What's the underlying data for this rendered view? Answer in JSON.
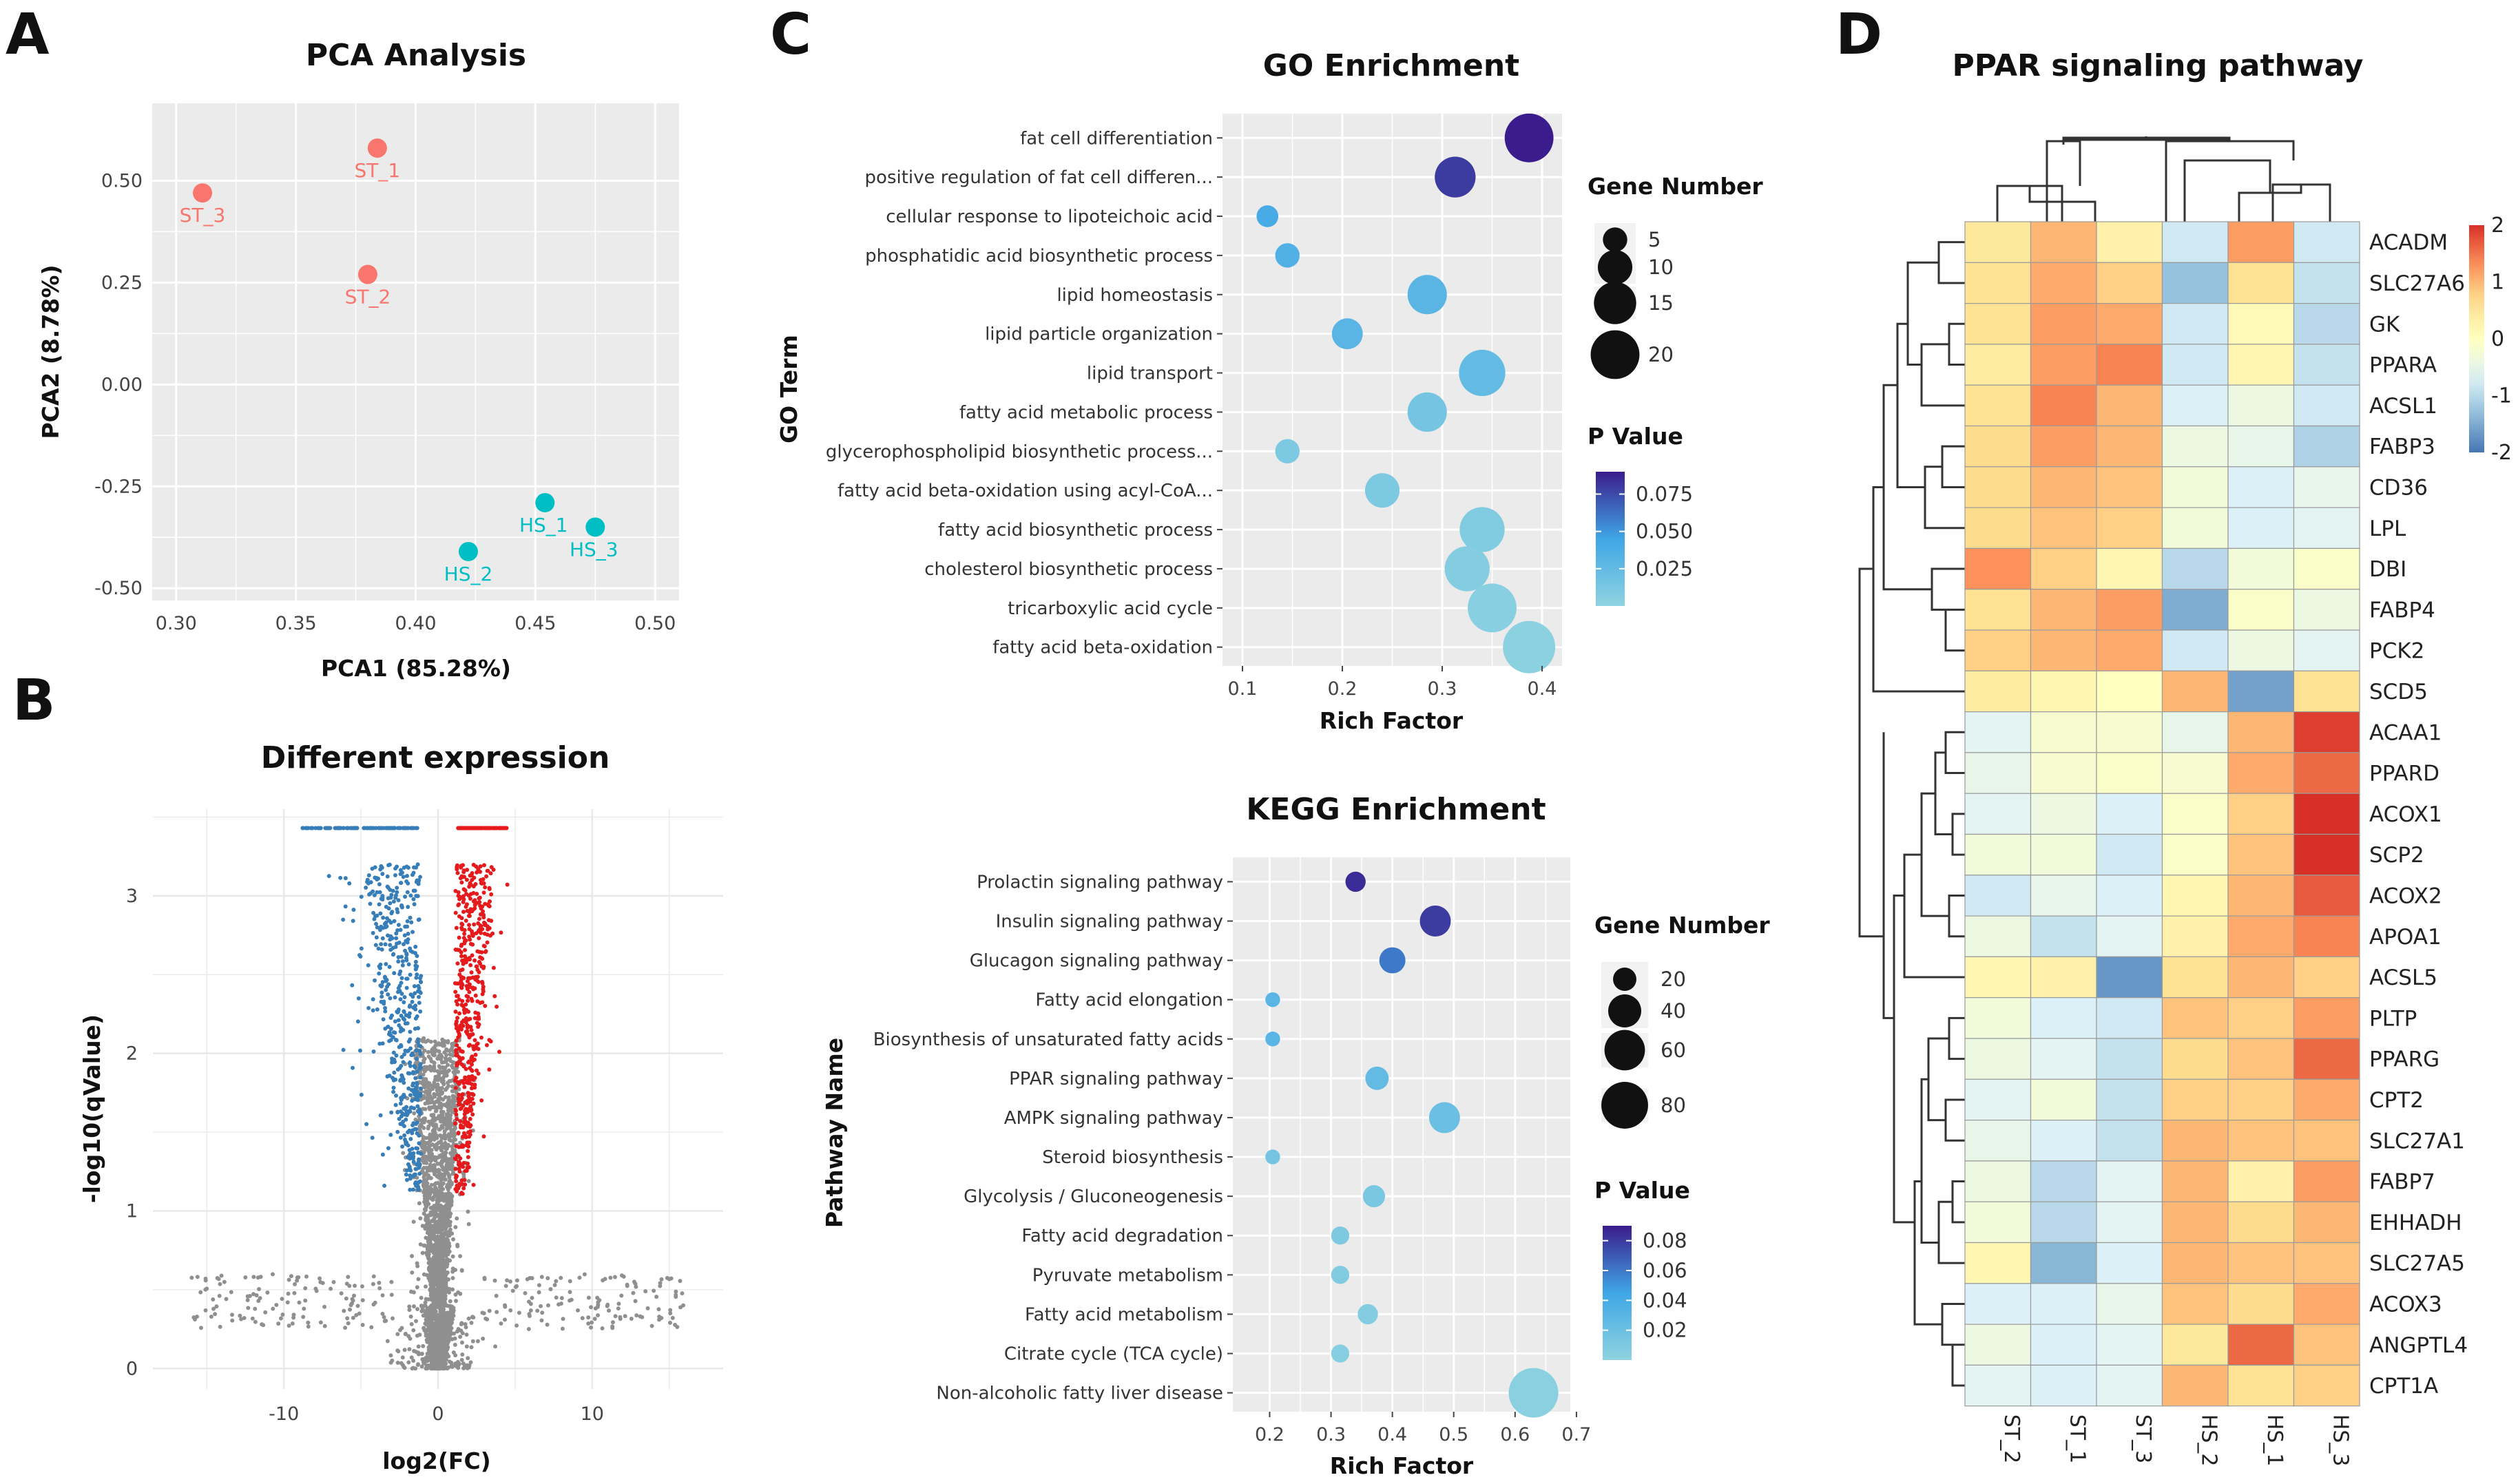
{
  "panels": {
    "A": {
      "letter": "A",
      "title": "PCA Analysis"
    },
    "B": {
      "letter": "B",
      "title": "Different expression"
    },
    "C": {
      "letter": "C"
    },
    "D": {
      "letter": "D",
      "title": "PPAR signaling pathway"
    }
  },
  "colors": {
    "st": "#f8766d",
    "hs": "#00bfc4",
    "panel_bg": "#ebebeb",
    "up": "#e41a1c",
    "down": "#377eb8",
    "ns": "#8f8f8f",
    "p_low": "#8fd3e0",
    "p_mid": "#3fa6e6",
    "p_high": "#3b1c8c",
    "heat_low": "#4575b4",
    "heat_mid": "#ffffbf",
    "heat_high": "#d73027"
  },
  "chart_data": [
    {
      "id": "pca",
      "type": "scatter",
      "title": "PCA Analysis",
      "xlabel": "PCA1 (85.28%)",
      "ylabel": "PCA2 (8.78%)",
      "xlim": [
        0.29,
        0.51
      ],
      "ylim": [
        -0.53,
        0.69
      ],
      "xticks": [
        0.3,
        0.35,
        0.4,
        0.45,
        0.5
      ],
      "xtick_labels": [
        "0.30",
        "0.35",
        "0.40",
        "0.45",
        "0.50"
      ],
      "yticks": [
        0.5,
        0.25,
        0.0,
        -0.25,
        -0.5
      ],
      "ytick_labels": [
        "0.50",
        "0.25",
        "0.00",
        "-0.25",
        "-0.50"
      ],
      "points": [
        {
          "label": "ST_1",
          "group": "ST",
          "x": 0.384,
          "y": 0.58
        },
        {
          "label": "ST_2",
          "group": "ST",
          "x": 0.38,
          "y": 0.27
        },
        {
          "label": "ST_3",
          "group": "ST",
          "x": 0.311,
          "y": 0.47
        },
        {
          "label": "HS_1",
          "group": "HS",
          "x": 0.454,
          "y": -0.29
        },
        {
          "label": "HS_2",
          "group": "HS",
          "x": 0.422,
          "y": -0.41
        },
        {
          "label": "HS_3",
          "group": "HS",
          "x": 0.475,
          "y": -0.35
        }
      ]
    },
    {
      "id": "volcano",
      "type": "scatter",
      "title": "Different expression",
      "xlabel": "log2(FC)",
      "ylabel": "-log10(qValue)",
      "xlim": [
        -18.5,
        18.5
      ],
      "ylim": [
        -0.13,
        3.55
      ],
      "xticks": [
        -10,
        0,
        10
      ],
      "xtick_labels": [
        "-10",
        "0",
        "10"
      ],
      "yticks": [
        0,
        1,
        2,
        3
      ],
      "ytick_labels": [
        "0",
        "1",
        "2",
        "3"
      ],
      "groups": [
        "up",
        "down",
        "not significant"
      ]
    },
    {
      "id": "go",
      "type": "scatter",
      "title": "GO Enrichment",
      "xlabel": "Rich Factor",
      "ylabel": "GO Term",
      "xlim": [
        0.08,
        0.42
      ],
      "xticks": [
        0.1,
        0.2,
        0.3,
        0.4
      ],
      "xtick_labels": [
        "0.1",
        "0.2",
        "0.3",
        "0.4"
      ],
      "categories": [
        "fat cell differentiation",
        "positive regulation of fat cell differen...",
        "cellular response to lipoteichoic acid",
        "phosphatidic acid biosynthetic process",
        "lipid homeostasis",
        "lipid particle organization",
        "lipid transport",
        "fatty acid metabolic process",
        "glycerophospholipid biosynthetic process...",
        "fatty acid beta-oxidation using acyl-CoA...",
        "fatty acid biosynthetic process",
        "cholesterol biosynthetic process",
        "tricarboxylic acid cycle",
        "fatty acid beta-oxidation"
      ],
      "rich_factor": [
        0.387,
        0.313,
        0.125,
        0.145,
        0.285,
        0.205,
        0.34,
        0.285,
        0.145,
        0.24,
        0.34,
        0.325,
        0.35,
        0.387
      ],
      "gene_number": [
        20,
        14,
        4,
        5,
        13,
        8,
        18,
        13,
        5,
        10,
        17,
        17,
        20,
        23
      ],
      "p_value": [
        0.09,
        0.08,
        0.04,
        0.035,
        0.03,
        0.03,
        0.025,
        0.015,
        0.01,
        0.01,
        0.008,
        0.006,
        0.004,
        0.002
      ],
      "size_legend": {
        "title": "Gene Number",
        "values": [
          5,
          10,
          15,
          20
        ],
        "labels": [
          "5",
          "10",
          "15",
          "20"
        ]
      },
      "color_legend": {
        "title": "P Value",
        "range": [
          0,
          0.09
        ],
        "ticks": [
          0.075,
          0.05,
          0.025
        ],
        "labels": [
          "0.075",
          "0.050",
          "0.025"
        ]
      }
    },
    {
      "id": "kegg",
      "type": "scatter",
      "title": "KEGG Enrichment",
      "xlabel": "Rich Factor",
      "ylabel": "Pathway Name",
      "xlim": [
        0.14,
        0.69
      ],
      "xticks": [
        0.2,
        0.3,
        0.4,
        0.5,
        0.6,
        0.7
      ],
      "xtick_labels": [
        "0.2",
        "0.3",
        "0.4",
        "0.5",
        "0.6",
        "0.7"
      ],
      "categories": [
        "Prolactin signaling pathway",
        "Insulin signaling pathway",
        "Glucagon signaling pathway",
        "Fatty acid elongation",
        "Biosynthesis of unsaturated fatty acids",
        "PPAR signaling pathway",
        "AMPK signaling pathway",
        "Steroid biosynthesis",
        "Glycolysis / Gluconeogenesis",
        "Fatty acid degradation",
        "Pyruvate metabolism",
        "Fatty acid metabolism",
        "Citrate cycle (TCA cycle)",
        "Non-alcoholic fatty liver disease"
      ],
      "rich_factor": [
        0.34,
        0.47,
        0.4,
        0.205,
        0.205,
        0.375,
        0.485,
        0.205,
        0.37,
        0.315,
        0.315,
        0.36,
        0.315,
        0.63
      ],
      "gene_number": [
        15,
        35,
        25,
        8,
        8,
        20,
        35,
        8,
        18,
        12,
        12,
        15,
        12,
        90
      ],
      "p_value": [
        0.085,
        0.08,
        0.06,
        0.03,
        0.03,
        0.025,
        0.02,
        0.015,
        0.012,
        0.01,
        0.008,
        0.006,
        0.005,
        0.003
      ],
      "size_legend": {
        "title": "Gene Number",
        "values": [
          20,
          40,
          60,
          80
        ],
        "labels": [
          "20",
          "40",
          "60",
          "80"
        ]
      },
      "color_legend": {
        "title": "P Value",
        "range": [
          0,
          0.09
        ],
        "ticks": [
          0.08,
          0.06,
          0.04,
          0.02
        ],
        "labels": [
          "0.08",
          "0.06",
          "0.04",
          "0.02"
        ]
      }
    },
    {
      "id": "heatmap",
      "type": "heatmap",
      "title": "PPAR signaling pathway",
      "columns": [
        "ST_2",
        "ST_1",
        "ST_3",
        "HS_2",
        "HS_1",
        "HS_3"
      ],
      "rows": [
        "ACADM",
        "SLC27A6",
        "GK",
        "PPARA",
        "ACSL1",
        "FABP3",
        "CD36",
        "LPL",
        "DBI",
        "FABP4",
        "PCK2",
        "SCD5",
        "ACAA1",
        "PPARD",
        "ACOX1",
        "SCP2",
        "ACOX2",
        "APOA1",
        "ACSL5",
        "PLTP",
        "PPARG",
        "CPT2",
        "SLC27A1",
        "FABP7",
        "EHHADH",
        "SLC27A5",
        "ACOX3",
        "ANGPTL4",
        "CPT1A"
      ],
      "values": [
        [
          0.5,
          1.0,
          0.3,
          -0.8,
          1.2,
          -0.8
        ],
        [
          0.6,
          1.1,
          0.8,
          -1.3,
          0.6,
          -0.9
        ],
        [
          0.6,
          1.2,
          1.1,
          -0.8,
          0.1,
          -1.0
        ],
        [
          0.4,
          1.2,
          1.4,
          -0.8,
          0.2,
          -0.9
        ],
        [
          0.6,
          1.4,
          1.0,
          -0.7,
          -0.4,
          -0.8
        ],
        [
          0.7,
          1.2,
          1.0,
          -0.4,
          -0.5,
          -1.1
        ],
        [
          0.7,
          1.0,
          0.9,
          -0.3,
          -0.7,
          -0.5
        ],
        [
          0.7,
          0.9,
          0.8,
          -0.3,
          -0.7,
          -0.6
        ],
        [
          1.3,
          0.8,
          0.2,
          -1.0,
          -0.3,
          -0.1
        ],
        [
          0.6,
          1.0,
          1.2,
          -1.5,
          -0.1,
          -0.4
        ],
        [
          0.8,
          1.0,
          1.1,
          -0.8,
          -0.4,
          -0.6
        ],
        [
          0.4,
          0.2,
          0.0,
          1.0,
          -1.6,
          0.6
        ],
        [
          -0.6,
          -0.2,
          -0.2,
          -0.5,
          1.0,
          1.9
        ],
        [
          -0.5,
          -0.2,
          -0.1,
          -0.2,
          1.1,
          1.6
        ],
        [
          -0.6,
          -0.4,
          -0.7,
          -0.1,
          0.8,
          2.0
        ],
        [
          -0.3,
          -0.3,
          -0.8,
          -0.1,
          0.9,
          2.0
        ],
        [
          -0.8,
          -0.5,
          -0.7,
          0.2,
          1.0,
          1.7
        ],
        [
          -0.4,
          -0.9,
          -0.6,
          0.3,
          1.1,
          1.4
        ],
        [
          0.2,
          0.3,
          -1.7,
          0.6,
          1.0,
          0.8
        ],
        [
          -0.3,
          -0.7,
          -0.8,
          0.9,
          0.8,
          1.2
        ],
        [
          -0.4,
          -0.6,
          -0.9,
          0.7,
          0.9,
          1.6
        ],
        [
          -0.6,
          -0.3,
          -0.9,
          0.8,
          0.8,
          1.1
        ],
        [
          -0.5,
          -0.7,
          -0.9,
          1.0,
          0.9,
          0.9
        ],
        [
          -0.4,
          -1.0,
          -0.6,
          1.0,
          0.3,
          1.2
        ],
        [
          -0.3,
          -1.0,
          -0.6,
          1.0,
          0.7,
          1.0
        ],
        [
          0.2,
          -1.4,
          -0.7,
          1.0,
          0.9,
          0.9
        ],
        [
          -0.7,
          -0.7,
          -0.5,
          0.9,
          0.7,
          1.1
        ],
        [
          -0.4,
          -0.7,
          -0.6,
          0.5,
          1.6,
          0.9
        ],
        [
          -0.6,
          -0.7,
          -0.6,
          1.0,
          0.6,
          0.8
        ]
      ],
      "scale": {
        "min": -2,
        "max": 2,
        "ticks": [
          2,
          1,
          0,
          -1,
          -2
        ],
        "labels": [
          "2",
          "1",
          "0",
          "-1",
          "-2"
        ]
      }
    }
  ]
}
